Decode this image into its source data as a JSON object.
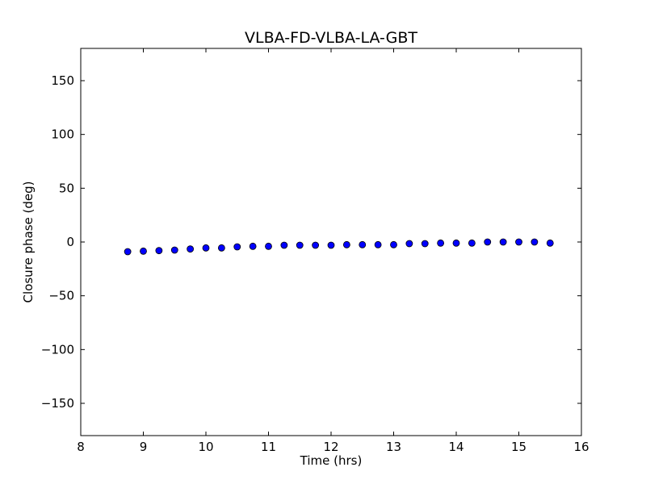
{
  "chart_data": {
    "type": "scatter",
    "title": "VLBA-FD-VLBA-LA-GBT",
    "xlabel": "Time (hrs)",
    "ylabel": "Closure phase (deg)",
    "xlim": [
      8,
      16
    ],
    "ylim": [
      -180,
      180
    ],
    "x_ticks": [
      8,
      9,
      10,
      11,
      12,
      13,
      14,
      15,
      16
    ],
    "x_tick_labels": [
      "8",
      "9",
      "10",
      "11",
      "12",
      "13",
      "14",
      "15",
      "16"
    ],
    "y_ticks": [
      150,
      100,
      50,
      0,
      -50,
      -100,
      -150
    ],
    "y_tick_labels": [
      "150",
      "100",
      "50",
      "0",
      "−50",
      "−100",
      "−150"
    ],
    "grid": false,
    "marker_color": "#0000ff",
    "marker_edge_color": "#000000",
    "series": [
      {
        "x": [
          8.75,
          9.0,
          9.25,
          9.5,
          9.75,
          10.0,
          10.25,
          10.5,
          10.75,
          11.0,
          11.25,
          11.5,
          11.75,
          12.0,
          12.25,
          12.5,
          12.75,
          13.0,
          13.25,
          13.5,
          13.75,
          14.0,
          14.25,
          14.5,
          14.75,
          15.0,
          15.25,
          15.5
        ],
        "y": [
          -9,
          -8.5,
          -8,
          -7.5,
          -6.5,
          -5.5,
          -5.5,
          -4.5,
          -4,
          -4,
          -3,
          -3,
          -3,
          -3,
          -2.5,
          -2.5,
          -2.5,
          -2.5,
          -1.5,
          -1.5,
          -1,
          -1,
          -1,
          0,
          0,
          0,
          0,
          -1
        ]
      }
    ]
  }
}
